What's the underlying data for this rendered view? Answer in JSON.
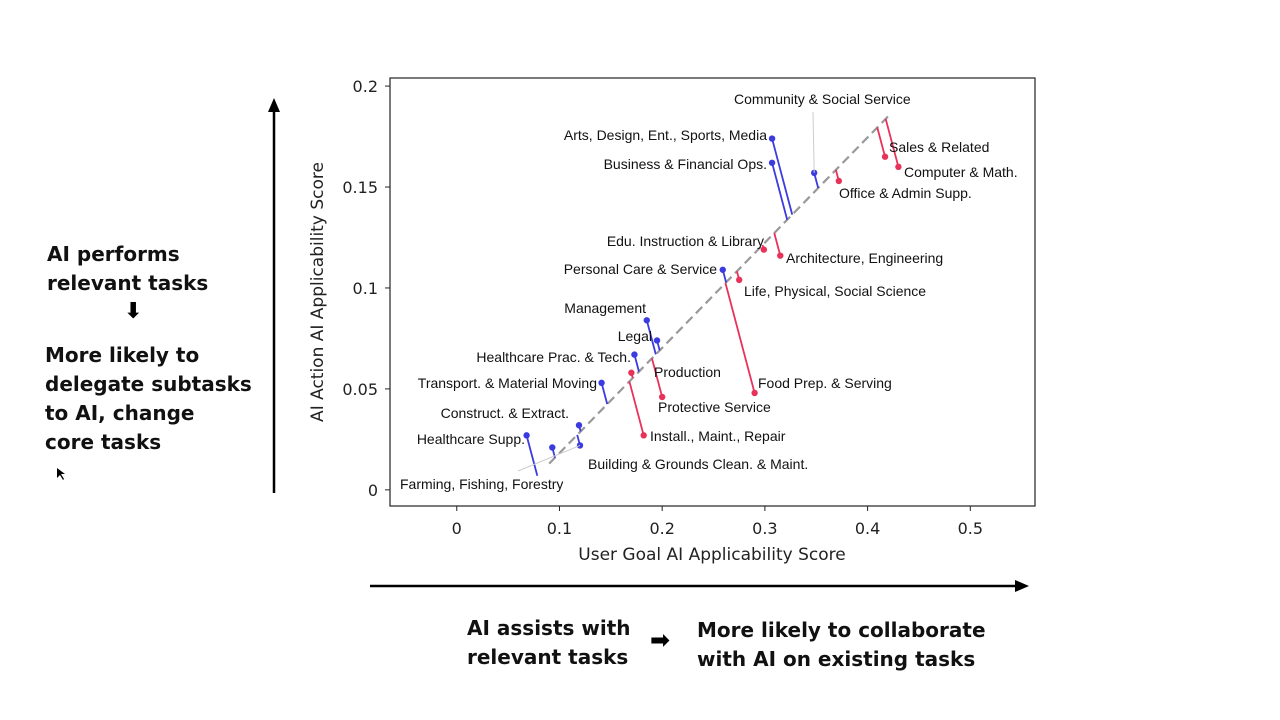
{
  "left_annotation": {
    "line1": "AI performs",
    "line2": "relevant tasks",
    "arrow": "⬇",
    "result1": "More likely to",
    "result2": "delegate subtasks",
    "result3": "to AI, change",
    "result4": "core tasks"
  },
  "bottom_annotation": {
    "left1": "AI assists with",
    "left2": "relevant tasks",
    "arrow": "➡",
    "right1": "More likely to collaborate",
    "right2": "with AI on existing tasks"
  },
  "colors": {
    "below_diagonal": "#3b3be0",
    "above_diagonal": "#e8325a",
    "diagonal": "#999999",
    "axis_arrows": "#000000"
  },
  "chart_data": {
    "type": "scatter",
    "xlabel": "User Goal AI Applicability Score",
    "ylabel": "AI Action AI Applicability Score",
    "xlim": [
      -0.065,
      0.563
    ],
    "ylim": [
      -0.008,
      0.204
    ],
    "xticks": [
      0,
      0.1,
      0.2,
      0.3,
      0.4,
      0.5
    ],
    "xtick_labels": [
      "0",
      "0.1",
      "0.2",
      "0.3",
      "0.4",
      "0.5"
    ],
    "yticks": [
      0,
      0.05,
      0.1,
      0.15,
      0.2
    ],
    "ytick_labels": [
      "0",
      "0.05",
      "0.1",
      "0.15",
      "0.2"
    ],
    "diagonal": [
      [
        0.09,
        0.013
      ],
      [
        0.42,
        0.185
      ]
    ],
    "points": [
      {
        "label": "Community & Social Service",
        "x": 0.348,
        "y": 0.157,
        "color": "blue"
      },
      {
        "label": "Arts, Design, Ent., Sports, Media",
        "x": 0.307,
        "y": 0.174,
        "color": "blue"
      },
      {
        "label": "Business & Financial Ops.",
        "x": 0.307,
        "y": 0.162,
        "color": "blue"
      },
      {
        "label": "Sales & Related",
        "x": 0.417,
        "y": 0.165,
        "color": "red"
      },
      {
        "label": "Computer & Math.",
        "x": 0.43,
        "y": 0.16,
        "color": "red"
      },
      {
        "label": "Office & Admin Supp.",
        "x": 0.372,
        "y": 0.153,
        "color": "red"
      },
      {
        "label": "Edu. Instruction & Library",
        "x": 0.299,
        "y": 0.119,
        "color": "red"
      },
      {
        "label": "Architecture, Engineering",
        "x": 0.315,
        "y": 0.116,
        "color": "red"
      },
      {
        "label": "Personal Care & Service",
        "x": 0.259,
        "y": 0.109,
        "color": "blue"
      },
      {
        "label": "Life, Physical, Social Science",
        "x": 0.275,
        "y": 0.104,
        "color": "red"
      },
      {
        "label": "Management",
        "x": 0.185,
        "y": 0.084,
        "color": "blue"
      },
      {
        "label": "Legal",
        "x": 0.195,
        "y": 0.074,
        "color": "blue"
      },
      {
        "label": "Healthcare Prac. & Tech.",
        "x": 0.173,
        "y": 0.067,
        "color": "blue"
      },
      {
        "label": "Production",
        "x": 0.17,
        "y": 0.058,
        "color": "red"
      },
      {
        "label": "Food Prep. & Serving",
        "x": 0.29,
        "y": 0.048,
        "color": "red"
      },
      {
        "label": "Transport. & Material Moving",
        "x": 0.141,
        "y": 0.053,
        "color": "blue"
      },
      {
        "label": "Protective Service",
        "x": 0.2,
        "y": 0.046,
        "color": "red"
      },
      {
        "label": "Construct. & Extract.",
        "x": 0.119,
        "y": 0.032,
        "color": "blue"
      },
      {
        "label": "Install., Maint., Repair",
        "x": 0.182,
        "y": 0.027,
        "color": "red"
      },
      {
        "label": "Healthcare Supp.",
        "x": 0.068,
        "y": 0.027,
        "color": "blue"
      },
      {
        "label": "Building & Grounds Clean. & Maint.",
        "x": 0.093,
        "y": 0.021,
        "color": "blue"
      },
      {
        "label": "Farming, Fishing, Forestry",
        "x": 0.12,
        "y": 0.022,
        "color": "blue"
      }
    ]
  }
}
